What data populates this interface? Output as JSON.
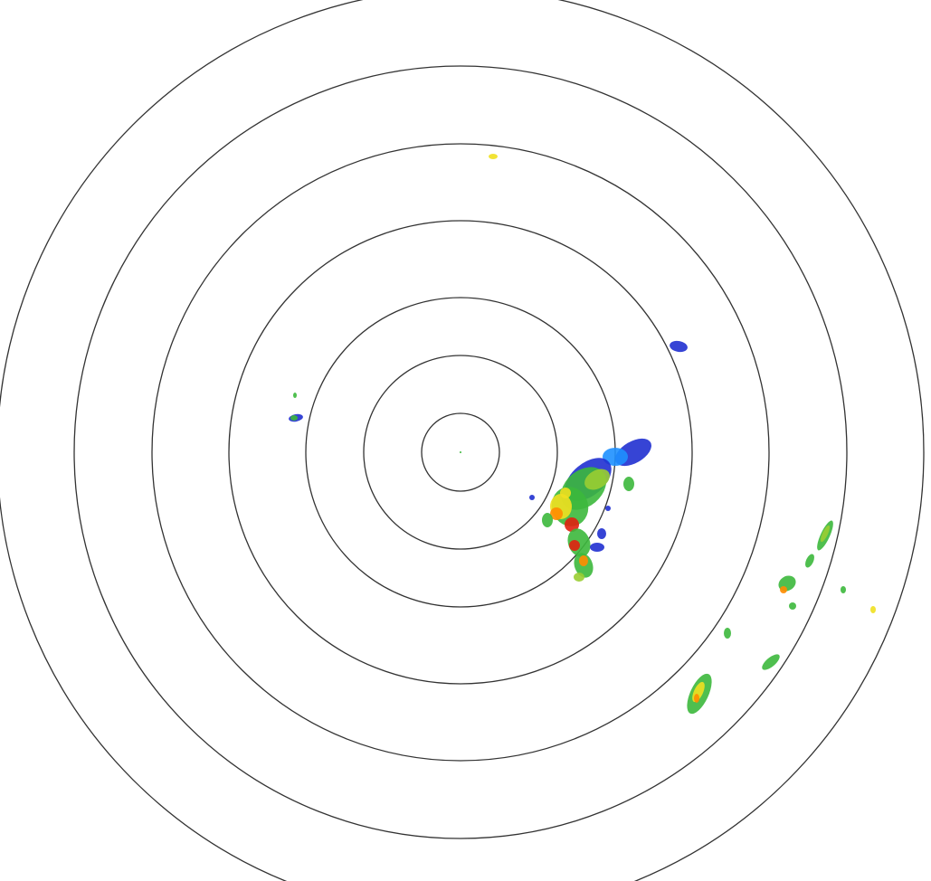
{
  "radar": {
    "ring_color": "#333333",
    "background": "#ffffff",
    "reflectivity_colors": {
      "weak": "#2030d0",
      "light": "#1e90ff",
      "moderate": "#3cb83c",
      "moderate_high": "#9acd32",
      "high": "#f0e020",
      "very_high": "#ff8c00",
      "intense": "#e02010"
    }
  }
}
